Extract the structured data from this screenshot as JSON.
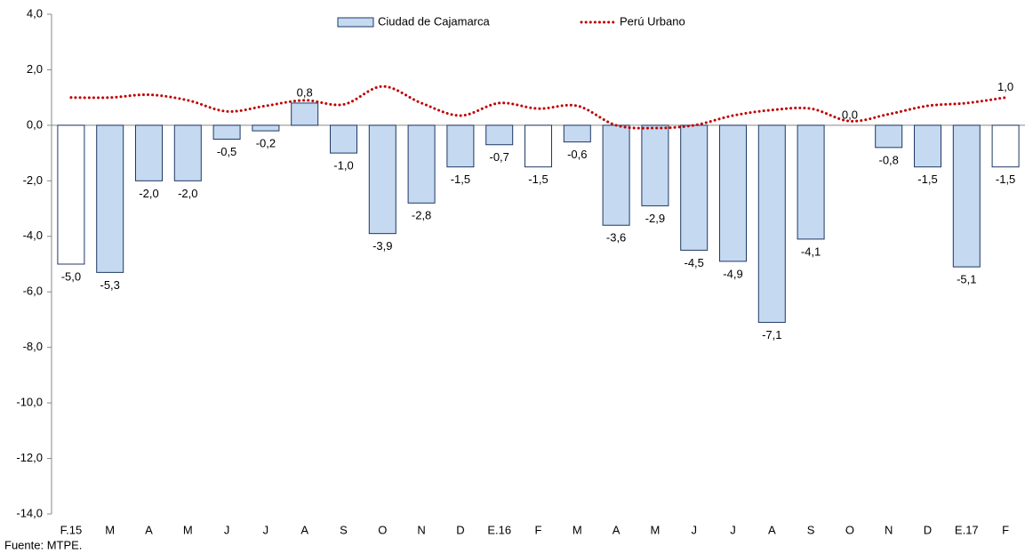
{
  "chart_data": {
    "type": "bar-line",
    "categories": [
      "F.15",
      "M",
      "A",
      "M",
      "J",
      "J",
      "A",
      "S",
      "O",
      "N",
      "D",
      "E.16",
      "F",
      "M",
      "A",
      "M",
      "J",
      "J",
      "A",
      "S",
      "O",
      "N",
      "D",
      "E.17",
      "F"
    ],
    "series": [
      {
        "name": "Ciudad de Cajamarca",
        "type": "bar",
        "color": "#c5d9f1",
        "edge": "#1f3864",
        "colors": [
          "#ffffff",
          "#c5d9f1",
          "#c5d9f1",
          "#c5d9f1",
          "#c5d9f1",
          "#c5d9f1",
          "#c5d9f1",
          "#c5d9f1",
          "#c5d9f1",
          "#c5d9f1",
          "#c5d9f1",
          "#c5d9f1",
          "#ffffff",
          "#c5d9f1",
          "#c5d9f1",
          "#c5d9f1",
          "#c5d9f1",
          "#c5d9f1",
          "#c5d9f1",
          "#c5d9f1",
          "#c5d9f1",
          "#c5d9f1",
          "#c5d9f1",
          "#c5d9f1",
          "#ffffff"
        ],
        "values": [
          -5.0,
          -5.3,
          -2.0,
          -2.0,
          -0.5,
          -0.2,
          0.8,
          -1.0,
          -3.9,
          -2.8,
          -1.5,
          -0.7,
          -1.5,
          -0.6,
          -3.6,
          -2.9,
          -4.5,
          -4.9,
          -7.1,
          -4.1,
          0.0,
          -0.8,
          -1.5,
          -5.1,
          -1.5
        ],
        "value_labels": [
          "-5,0",
          "-5,3",
          "-2,0",
          "-2,0",
          "-0,5",
          "-0,2",
          "0,8",
          "-1,0",
          "-3,9",
          "-2,8",
          "-1,5",
          "-0,7",
          "-1,5",
          "-0,6",
          "-3,6",
          "-2,9",
          "-4,5",
          "-4,9",
          "-7,1",
          "-4,1",
          "0,0",
          "-0,8",
          "-1,5",
          "-5,1",
          "-1,5"
        ]
      },
      {
        "name": "Perú Urbano",
        "type": "line",
        "color": "#c00000",
        "values": [
          1.0,
          1.0,
          1.1,
          0.9,
          0.5,
          0.7,
          0.9,
          0.75,
          1.4,
          0.8,
          0.35,
          0.8,
          0.6,
          0.7,
          0.0,
          -0.1,
          0.0,
          0.35,
          0.55,
          0.6,
          0.15,
          0.4,
          0.7,
          0.8,
          1.0
        ],
        "value_labels": [
          null,
          null,
          null,
          null,
          null,
          null,
          null,
          null,
          null,
          null,
          null,
          null,
          null,
          null,
          null,
          null,
          null,
          null,
          null,
          null,
          null,
          null,
          null,
          null,
          "1,0"
        ]
      }
    ],
    "ylim": [
      -14,
      4
    ],
    "yticks": [
      {
        "value": 4,
        "label": "4,0"
      },
      {
        "value": 2,
        "label": "2,0"
      },
      {
        "value": 0,
        "label": "0,0"
      },
      {
        "value": -2,
        "label": "-2,0"
      },
      {
        "value": -4,
        "label": "-4,0"
      },
      {
        "value": -6,
        "label": "-6,0"
      },
      {
        "value": -8,
        "label": "-8,0"
      },
      {
        "value": -10,
        "label": "-10,0"
      },
      {
        "value": -12,
        "label": "-12,0"
      },
      {
        "value": -14,
        "label": "-14,0"
      }
    ],
    "grid": false,
    "source": "Fuente: MTPE."
  }
}
